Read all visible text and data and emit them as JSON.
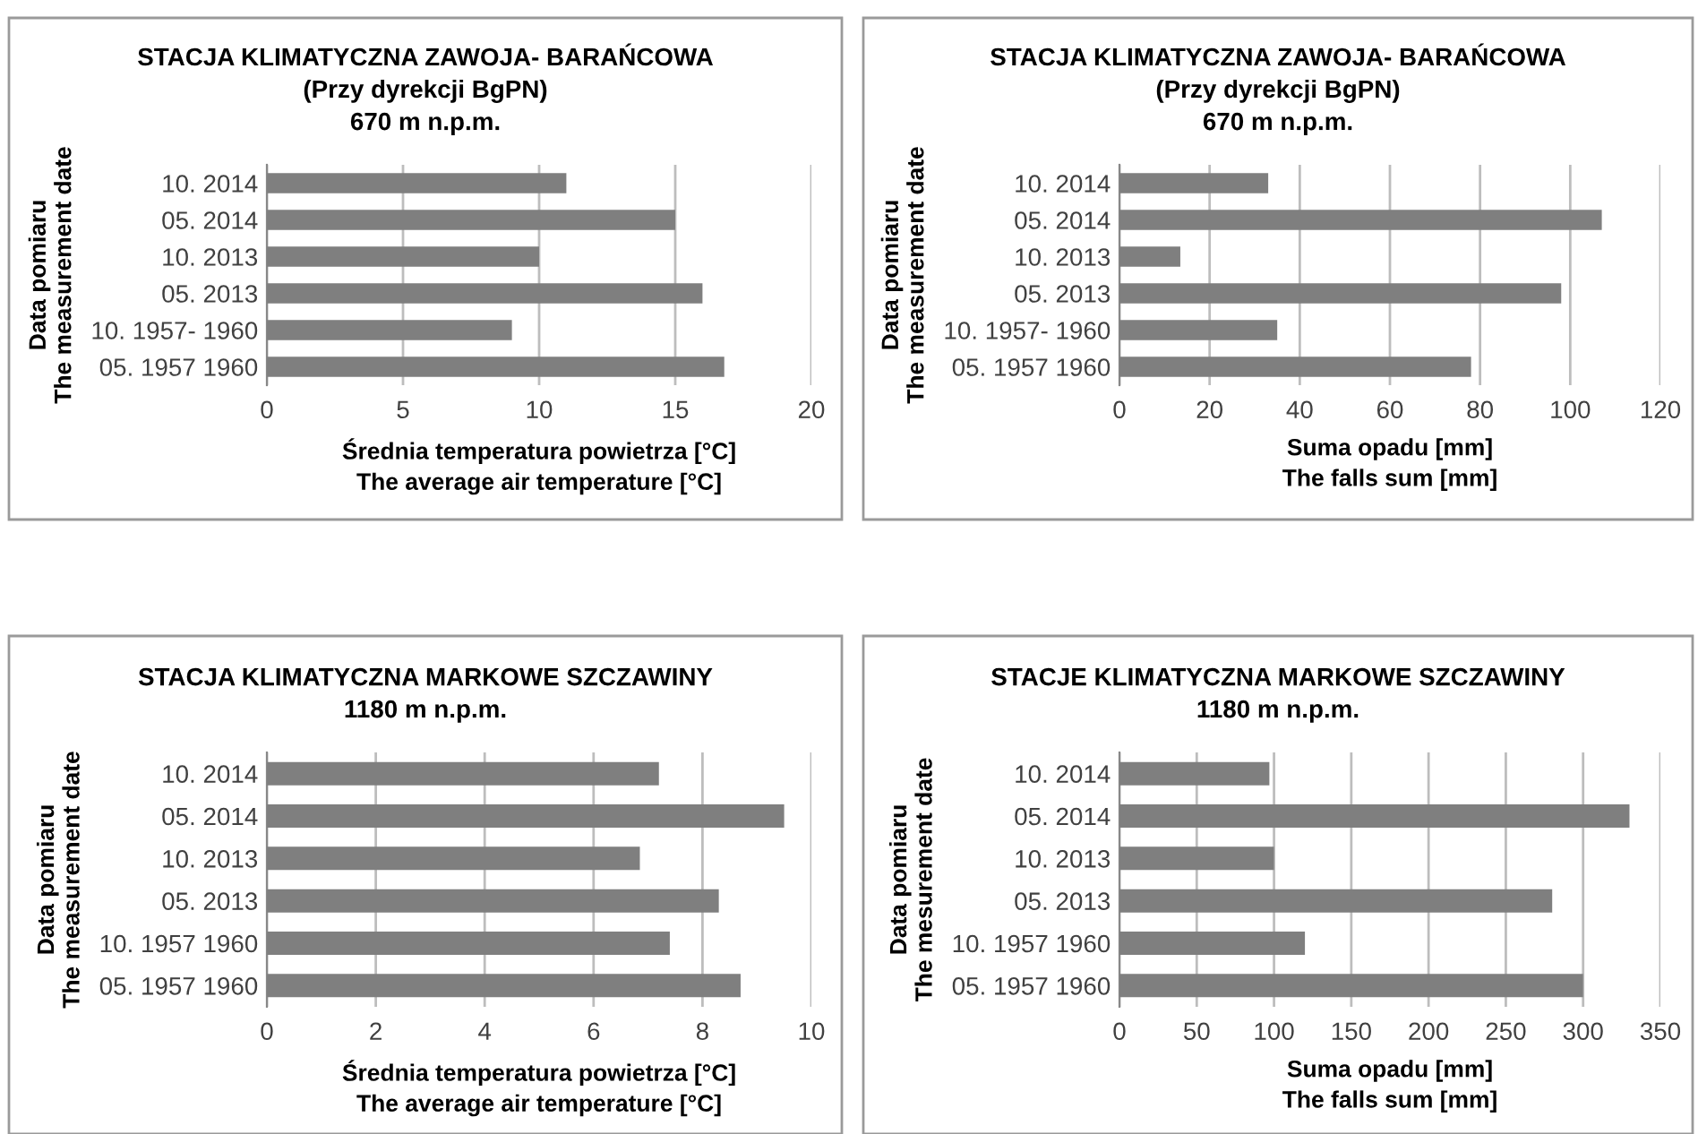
{
  "chart_data": [
    {
      "type": "bar",
      "orientation": "horizontal",
      "title": "STACJA KLIMATYCZNA ZAWOJA- BARAŃCOWA\n(Przy dyrekcji BgPN)\n670 m n.p.m.",
      "xlabel": "Średnia temperatura powietrza [°C]\nThe average air temperature [°C]",
      "ylabel": "Data pomiaru\nThe measurement date",
      "categories": [
        "10. 2014",
        "05. 2014",
        "10. 2013",
        "05. 2013",
        "10. 1957- 1960",
        "05. 1957 1960"
      ],
      "values": [
        11,
        15,
        10,
        16,
        9,
        16.8
      ],
      "color": "#7f7f7f",
      "xlim": [
        0,
        20
      ],
      "xticks": [
        0,
        5,
        10,
        15,
        20
      ],
      "grid": "x"
    },
    {
      "type": "bar",
      "orientation": "horizontal",
      "title": "STACJA KLIMATYCZNA ZAWOJA- BARAŃCOWA\n(Przy dyrekcji BgPN)\n670 m n.p.m.",
      "xlabel": "Suma opadu [mm]\nThe falls sum [mm]",
      "ylabel": "Data pomiaru\nThe measurement date",
      "categories": [
        "10. 2014",
        "05. 2014",
        "10. 2013",
        "05. 2013",
        "10. 1957- 1960",
        "05. 1957 1960"
      ],
      "values": [
        33,
        107,
        13.5,
        98,
        35,
        78
      ],
      "color": "#7f7f7f",
      "xlim": [
        0,
        120
      ],
      "xticks": [
        0,
        20,
        40,
        60,
        80,
        100,
        120
      ],
      "grid": "x"
    },
    {
      "type": "bar",
      "orientation": "horizontal",
      "title": "STACJA KLIMATYCZNA MARKOWE SZCZAWINY\n1180 m n.p.m.",
      "xlabel": "Średnia temperatura powietrza [°C]\nThe average air temperature [°C]",
      "ylabel": "Data pomiaru\nThe measurement date",
      "categories": [
        "10. 2014",
        "05. 2014",
        "10. 2013",
        "05. 2013",
        "10. 1957 1960",
        "05. 1957 1960"
      ],
      "values": [
        7.2,
        9.5,
        6.85,
        8.3,
        7.4,
        8.7
      ],
      "color": "#7f7f7f",
      "xlim": [
        0,
        10
      ],
      "xticks": [
        0,
        2,
        4,
        6,
        8,
        10
      ],
      "grid": "x"
    },
    {
      "type": "bar",
      "orientation": "horizontal",
      "title": "STACJE KLIMATYCZNA MARKOWE SZCZAWINY\n1180 m n.p.m.",
      "xlabel": "Suma opadu [mm]\nThe falls sum [mm]",
      "ylabel": "Data pomiaru\nThe mesurement date",
      "categories": [
        "10. 2014",
        "05. 2014",
        "10. 2013",
        "05. 2013",
        "10. 1957 1960",
        "05. 1957 1960"
      ],
      "values": [
        97,
        330,
        100,
        280,
        120,
        300
      ],
      "color": "#7f7f7f",
      "xlim": [
        0,
        350
      ],
      "xticks": [
        0,
        50,
        100,
        150,
        200,
        250,
        300,
        350
      ],
      "grid": "x"
    }
  ]
}
